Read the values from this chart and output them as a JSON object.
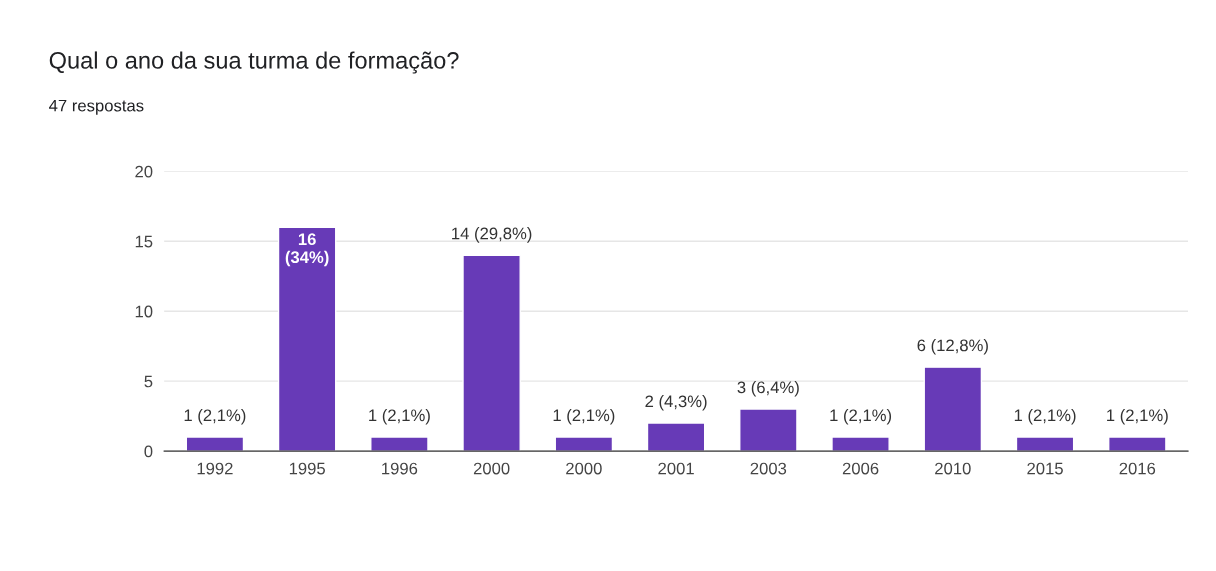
{
  "chart_data": {
    "type": "bar",
    "title": "Qual o ano da sua turma de formação?",
    "subtitle": "47 respostas",
    "categories": [
      "1992",
      "1995",
      "1996",
      "2000",
      "2000",
      "2001",
      "2003",
      "2006",
      "2010",
      "2015",
      "2016"
    ],
    "values": [
      1,
      16,
      1,
      14,
      1,
      2,
      3,
      1,
      6,
      1,
      1
    ],
    "value_labels": [
      "1 (2,1%)",
      "16 (34%)",
      "1 (2,1%)",
      "14 (29,8%)",
      "1 (2,1%)",
      "2 (4,3%)",
      "3 (6,4%)",
      "1 (2,1%)",
      "6 (12,8%)",
      "1 (2,1%)",
      "1 (2,1%)"
    ],
    "color": "#673ab7",
    "ylim": [
      0,
      20
    ],
    "yticks": [
      0,
      5,
      10,
      15,
      20
    ],
    "grid": "y",
    "legend": false
  }
}
